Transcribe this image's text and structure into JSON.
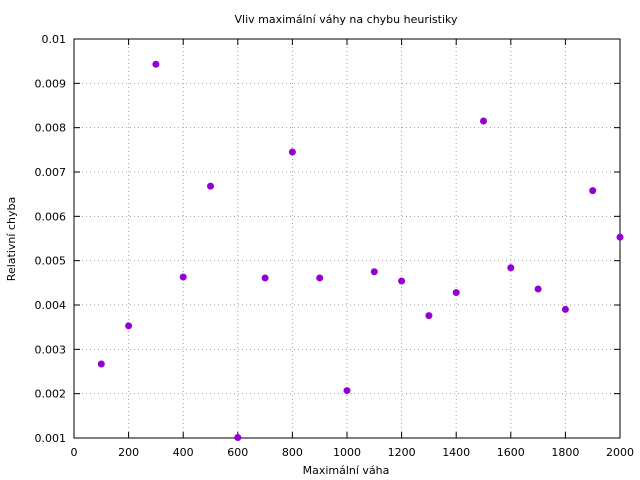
{
  "chart_data": {
    "type": "scatter",
    "title": "Vliv maximální váhy na chybu heuristiky",
    "xlabel": "Maximální váha",
    "ylabel": "Relativní chyba",
    "xlim": [
      0,
      2000
    ],
    "ylim": [
      0.001,
      0.01
    ],
    "x_ticks": [
      0,
      200,
      400,
      600,
      800,
      1000,
      1200,
      1400,
      1600,
      1800,
      2000
    ],
    "y_ticks": [
      0.001,
      0.002,
      0.003,
      0.004,
      0.005,
      0.006,
      0.007,
      0.008,
      0.009,
      0.01
    ],
    "x_tick_labels": [
      "0",
      "200",
      "400",
      "600",
      "800",
      "1000",
      "1200",
      "1400",
      "1600",
      "1800",
      "2000"
    ],
    "y_tick_labels": [
      "0.001",
      "0.002",
      "0.003",
      "0.004",
      "0.005",
      "0.006",
      "0.007",
      "0.008",
      "0.009",
      "0.01"
    ],
    "grid": true,
    "color": "#9400d3",
    "series": [
      {
        "x": [
          100,
          200,
          300,
          400,
          500,
          600,
          700,
          800,
          900,
          1000,
          1100,
          1200,
          1300,
          1400,
          1500,
          1600,
          1700,
          1800,
          1900,
          2000
        ],
        "y": [
          0.00267,
          0.00353,
          0.00943,
          0.00463,
          0.00668,
          0.00101,
          0.00461,
          0.00745,
          0.00461,
          0.00207,
          0.00475,
          0.00454,
          0.00376,
          0.00428,
          0.00815,
          0.00484,
          0.00436,
          0.0039,
          0.00658,
          0.00553
        ]
      }
    ]
  }
}
